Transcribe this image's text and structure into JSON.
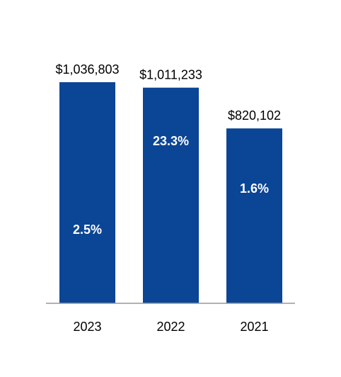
{
  "chart_data": {
    "type": "bar",
    "categories": [
      "2023",
      "2022",
      "2021"
    ],
    "values": [
      1036803,
      1011233,
      820102
    ],
    "value_labels": [
      "$1,036,803",
      "$1,011,233",
      "$820,102"
    ],
    "color": "#0b4595",
    "growth": {
      "values": [
        2.5,
        23.3,
        1.6
      ],
      "value_labels": [
        "2.5%",
        "23.3%",
        "1.6%"
      ]
    }
  }
}
